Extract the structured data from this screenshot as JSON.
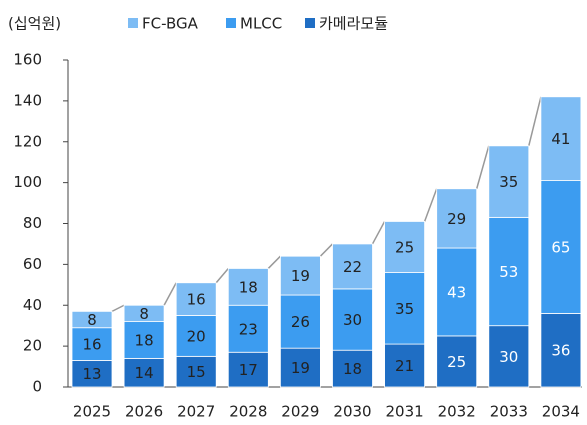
{
  "chart_data": {
    "type": "stacked_bar",
    "unit_label": "(십억원)",
    "categories": [
      "2025",
      "2026",
      "2027",
      "2028",
      "2029",
      "2030",
      "2031",
      "2032",
      "2033",
      "2034"
    ],
    "series": [
      {
        "name": "카메라모듈",
        "color": "#1f6ec4",
        "values": [
          13,
          14,
          15,
          17,
          19,
          18,
          21,
          25,
          30,
          36
        ]
      },
      {
        "name": "MLCC",
        "color": "#3c9cf0",
        "values": [
          16,
          18,
          20,
          23,
          26,
          30,
          35,
          43,
          53,
          65
        ]
      },
      {
        "name": "FC-BGA",
        "color": "#7dbcf4",
        "values": [
          8,
          8,
          16,
          18,
          19,
          22,
          25,
          29,
          35,
          41
        ]
      }
    ],
    "legend_order": [
      "FC-BGA",
      "MLCC",
      "카메라모듈"
    ],
    "ylim": [
      0,
      160
    ],
    "yticks": [
      0,
      20,
      40,
      60,
      80,
      100,
      120,
      140,
      160
    ]
  }
}
